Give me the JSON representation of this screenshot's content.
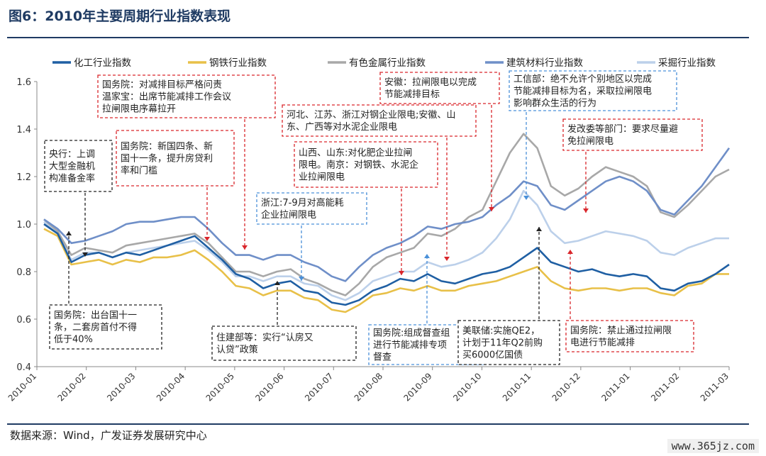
{
  "figure_title": "图6：2010年主要周期行业指数表现",
  "source_note": "数据来源：Wind，广发证券发展研究中心",
  "watermark": "www.365jz.com",
  "colors": {
    "chem": "#1f5fa3",
    "steel": "#e8c048",
    "nonferrous": "#a8a8a8",
    "building": "#6f8fc8",
    "mining": "#bcd0ea",
    "annotation_red": "#d9262b",
    "annotation_blue": "#4a90d9",
    "annotation_black": "#222222"
  },
  "chart_data": {
    "type": "line",
    "x_ticks": [
      "2010-01",
      "2010-02",
      "2010-03",
      "2010-04",
      "2010-05",
      "2010-06",
      "2010-07",
      "2010-08",
      "2010-09",
      "2010-10",
      "2010-11",
      "2010-12",
      "2011-01",
      "2011-02",
      "2011-03"
    ],
    "ylim": [
      0.4,
      1.6
    ],
    "y_ticks": [
      "0.4",
      "0.6",
      "0.8",
      "1.0",
      "1.2",
      "1.4",
      "1.6"
    ],
    "legend_position": "top",
    "series": [
      {
        "name": "化工行业指数",
        "color_key": "chem",
        "values": [
          1.0,
          0.96,
          0.84,
          0.87,
          0.88,
          0.86,
          0.88,
          0.87,
          0.89,
          0.91,
          0.93,
          0.95,
          0.9,
          0.85,
          0.79,
          0.77,
          0.73,
          0.75,
          0.76,
          0.72,
          0.71,
          0.67,
          0.66,
          0.68,
          0.72,
          0.74,
          0.77,
          0.76,
          0.79,
          0.76,
          0.75,
          0.77,
          0.79,
          0.8,
          0.82,
          0.86,
          0.9,
          0.84,
          0.82,
          0.8,
          0.81,
          0.79,
          0.78,
          0.79,
          0.78,
          0.73,
          0.72,
          0.75,
          0.76,
          0.79,
          0.83
        ]
      },
      {
        "name": "钢铁行业指数",
        "color_key": "steel",
        "values": [
          0.98,
          0.95,
          0.83,
          0.84,
          0.85,
          0.83,
          0.85,
          0.84,
          0.86,
          0.86,
          0.87,
          0.89,
          0.85,
          0.8,
          0.74,
          0.73,
          0.7,
          0.72,
          0.72,
          0.69,
          0.68,
          0.64,
          0.63,
          0.66,
          0.7,
          0.71,
          0.73,
          0.72,
          0.74,
          0.72,
          0.72,
          0.74,
          0.75,
          0.76,
          0.78,
          0.8,
          0.82,
          0.76,
          0.73,
          0.72,
          0.73,
          0.73,
          0.72,
          0.73,
          0.73,
          0.71,
          0.7,
          0.74,
          0.75,
          0.79,
          0.79
        ]
      },
      {
        "name": "有色金属行业指数",
        "color_key": "nonferrous",
        "values": [
          1.02,
          0.97,
          0.87,
          0.9,
          0.89,
          0.88,
          0.91,
          0.92,
          0.93,
          0.94,
          0.95,
          0.96,
          0.92,
          0.86,
          0.8,
          0.8,
          0.78,
          0.8,
          0.81,
          0.77,
          0.75,
          0.72,
          0.7,
          0.75,
          0.82,
          0.86,
          0.88,
          0.9,
          0.96,
          0.95,
          0.98,
          1.03,
          1.06,
          1.18,
          1.3,
          1.38,
          1.32,
          1.16,
          1.12,
          1.15,
          1.2,
          1.24,
          1.22,
          1.2,
          1.16,
          1.05,
          1.03,
          1.08,
          1.14,
          1.2,
          1.23
        ]
      },
      {
        "name": "建筑材料行业指数",
        "color_key": "building",
        "values": [
          1.02,
          0.98,
          0.92,
          0.93,
          0.95,
          0.97,
          1.0,
          1.01,
          1.01,
          1.02,
          1.03,
          1.03,
          0.98,
          0.92,
          0.87,
          0.87,
          0.85,
          0.87,
          0.87,
          0.84,
          0.82,
          0.78,
          0.76,
          0.82,
          0.87,
          0.9,
          0.92,
          0.95,
          0.99,
          0.98,
          1.0,
          1.01,
          1.03,
          1.08,
          1.12,
          1.18,
          1.16,
          1.08,
          1.06,
          1.1,
          1.14,
          1.18,
          1.2,
          1.18,
          1.14,
          1.06,
          1.04,
          1.1,
          1.16,
          1.24,
          1.32
        ]
      },
      {
        "name": "采掘行业指数",
        "color_key": "mining",
        "values": [
          1.01,
          0.96,
          0.85,
          0.88,
          0.88,
          0.86,
          0.88,
          0.89,
          0.9,
          0.91,
          0.92,
          0.93,
          0.89,
          0.84,
          0.78,
          0.78,
          0.76,
          0.78,
          0.78,
          0.75,
          0.74,
          0.7,
          0.68,
          0.71,
          0.76,
          0.78,
          0.8,
          0.8,
          0.84,
          0.82,
          0.83,
          0.85,
          0.88,
          0.94,
          1.02,
          1.14,
          1.08,
          0.97,
          0.92,
          0.93,
          0.95,
          0.97,
          0.96,
          0.95,
          0.93,
          0.88,
          0.87,
          0.9,
          0.92,
          0.94,
          0.94
        ]
      }
    ],
    "annotations": [
      {
        "text": [
          "国务院：对减排目标严格问责",
          "温家宝：出席节能减排工作会议",
          "拉闸限电序幕拉开"
        ],
        "style": "red"
      },
      {
        "text": [
          "安徽：拉闸限电以完成",
          "节能减排目标"
        ],
        "style": "red"
      },
      {
        "text": [
          "工信部：绝不允许个别地区以完成",
          "节能减排目标为名，采取拉闸限电",
          "影响群众生活的行为"
        ],
        "style": "blue"
      },
      {
        "text": [
          "河北、江苏、浙江对钢企业限电;安徽、山",
          "东、广西等对水泥企业限电"
        ],
        "style": "red"
      },
      {
        "text": [
          "发改委等部门：要求尽量避",
          "免拉闸限电"
        ],
        "style": "red"
      },
      {
        "text": [
          "央行：上调",
          "大型金融机",
          "构准备金率"
        ],
        "style": "black"
      },
      {
        "text": [
          "国务院：新国四条、新",
          "国十一条，提升房贷利",
          "率和门槛"
        ],
        "style": "red"
      },
      {
        "text": [
          "山西、山东:对化肥企业拉闸",
          "限电。南京：对钢铁、水泥企",
          "业拉闸限电"
        ],
        "style": "red"
      },
      {
        "text": [
          "浙江:7-9月对高能耗",
          "企业拉闸限电"
        ],
        "style": "blue"
      },
      {
        "text": [
          "国务院：出台国十一",
          "条，二套房首付不得",
          "低于40%"
        ],
        "style": "black"
      },
      {
        "text": [
          "住建部等：实行“认房又",
          "认贷”政策"
        ],
        "style": "black"
      },
      {
        "text": [
          "国务院:组成督查组",
          "进行节能减排专项",
          "督查"
        ],
        "style": "blue"
      },
      {
        "text": [
          "美联储:实施QE2，",
          "计划于11年Q2前购",
          "买6000亿国债"
        ],
        "style": "black"
      },
      {
        "text": [
          "国务院：禁止通过拉闸限",
          "电进行节能减排"
        ],
        "style": "red"
      }
    ]
  }
}
